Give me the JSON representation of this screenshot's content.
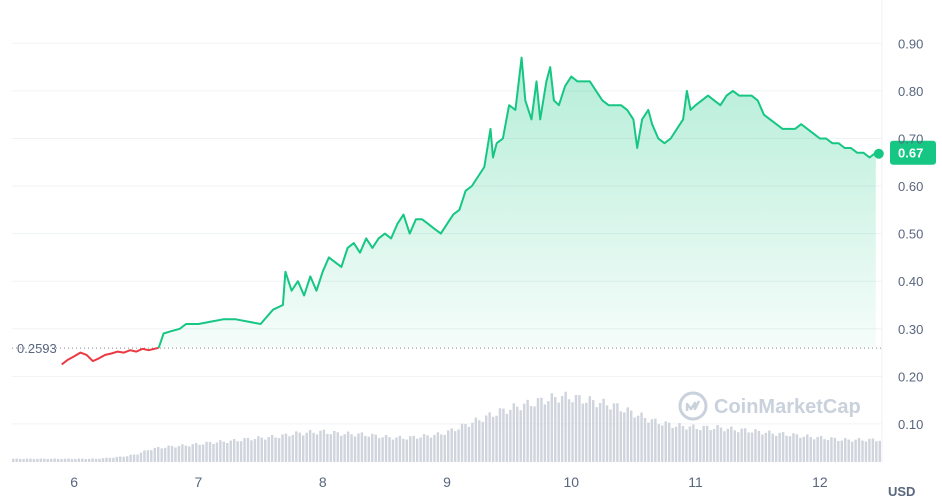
{
  "colors": {
    "up": "#16c784",
    "down": "#ea3943",
    "volume": "#d0d5dd",
    "grid": "#eff2f5",
    "badge": "#16c784"
  },
  "watermark": {
    "text": "CoinMarketCap",
    "icon": "coinmarketcap-logo-icon"
  },
  "current_price_label": "0.67",
  "reference_label": "0.2593",
  "unit_label": "USD",
  "chart_data": {
    "type": "area",
    "title": "",
    "xlabel": "",
    "ylabel": "",
    "currency": "USD",
    "x_ticks": [
      "6",
      "7",
      "8",
      "9",
      "10",
      "11",
      "12"
    ],
    "y_ticks": [
      "0.10",
      "0.20",
      "0.30",
      "0.40",
      "0.50",
      "0.60",
      "0.70",
      "0.80",
      "0.90"
    ],
    "ylim": [
      0.02,
      0.97
    ],
    "xlim": [
      5.5,
      12.5
    ],
    "reference_value": 0.2593,
    "last_value": 0.67,
    "series": [
      {
        "points": [
          [
            5.9,
            0.225
          ],
          [
            5.95,
            0.235
          ],
          [
            6.0,
            0.242
          ],
          [
            6.05,
            0.25
          ],
          [
            6.1,
            0.245
          ],
          [
            6.15,
            0.232
          ],
          [
            6.2,
            0.238
          ],
          [
            6.25,
            0.245
          ],
          [
            6.3,
            0.248
          ],
          [
            6.35,
            0.252
          ],
          [
            6.4,
            0.25
          ],
          [
            6.45,
            0.255
          ],
          [
            6.5,
            0.252
          ],
          [
            6.55,
            0.258
          ],
          [
            6.6,
            0.255
          ],
          [
            6.68,
            0.26
          ],
          [
            6.72,
            0.29
          ],
          [
            6.78,
            0.295
          ],
          [
            6.85,
            0.3
          ],
          [
            6.9,
            0.31
          ],
          [
            7.0,
            0.31
          ],
          [
            7.1,
            0.315
          ],
          [
            7.2,
            0.32
          ],
          [
            7.3,
            0.32
          ],
          [
            7.4,
            0.315
          ],
          [
            7.5,
            0.31
          ],
          [
            7.6,
            0.34
          ],
          [
            7.68,
            0.35
          ],
          [
            7.7,
            0.42
          ],
          [
            7.75,
            0.38
          ],
          [
            7.8,
            0.4
          ],
          [
            7.85,
            0.37
          ],
          [
            7.9,
            0.41
          ],
          [
            7.95,
            0.38
          ],
          [
            8.0,
            0.42
          ],
          [
            8.05,
            0.45
          ],
          [
            8.1,
            0.44
          ],
          [
            8.15,
            0.43
          ],
          [
            8.2,
            0.47
          ],
          [
            8.25,
            0.48
          ],
          [
            8.3,
            0.46
          ],
          [
            8.35,
            0.49
          ],
          [
            8.4,
            0.47
          ],
          [
            8.45,
            0.49
          ],
          [
            8.5,
            0.5
          ],
          [
            8.55,
            0.49
          ],
          [
            8.6,
            0.52
          ],
          [
            8.65,
            0.54
          ],
          [
            8.7,
            0.5
          ],
          [
            8.75,
            0.53
          ],
          [
            8.8,
            0.53
          ],
          [
            8.85,
            0.52
          ],
          [
            8.9,
            0.51
          ],
          [
            8.95,
            0.5
          ],
          [
            9.0,
            0.52
          ],
          [
            9.05,
            0.54
          ],
          [
            9.1,
            0.55
          ],
          [
            9.15,
            0.59
          ],
          [
            9.2,
            0.6
          ],
          [
            9.25,
            0.62
          ],
          [
            9.3,
            0.64
          ],
          [
            9.35,
            0.72
          ],
          [
            9.37,
            0.66
          ],
          [
            9.4,
            0.69
          ],
          [
            9.45,
            0.7
          ],
          [
            9.5,
            0.77
          ],
          [
            9.55,
            0.76
          ],
          [
            9.6,
            0.87
          ],
          [
            9.63,
            0.78
          ],
          [
            9.68,
            0.74
          ],
          [
            9.72,
            0.82
          ],
          [
            9.75,
            0.74
          ],
          [
            9.8,
            0.82
          ],
          [
            9.83,
            0.85
          ],
          [
            9.86,
            0.78
          ],
          [
            9.9,
            0.77
          ],
          [
            9.95,
            0.81
          ],
          [
            10.0,
            0.83
          ],
          [
            10.05,
            0.82
          ],
          [
            10.1,
            0.82
          ],
          [
            10.15,
            0.82
          ],
          [
            10.2,
            0.8
          ],
          [
            10.25,
            0.78
          ],
          [
            10.3,
            0.77
          ],
          [
            10.35,
            0.77
          ],
          [
            10.4,
            0.77
          ],
          [
            10.45,
            0.76
          ],
          [
            10.5,
            0.74
          ],
          [
            10.53,
            0.68
          ],
          [
            10.57,
            0.74
          ],
          [
            10.62,
            0.76
          ],
          [
            10.65,
            0.73
          ],
          [
            10.7,
            0.7
          ],
          [
            10.75,
            0.69
          ],
          [
            10.8,
            0.7
          ],
          [
            10.85,
            0.72
          ],
          [
            10.9,
            0.74
          ],
          [
            10.93,
            0.8
          ],
          [
            10.96,
            0.76
          ],
          [
            11.0,
            0.77
          ],
          [
            11.05,
            0.78
          ],
          [
            11.1,
            0.79
          ],
          [
            11.15,
            0.78
          ],
          [
            11.2,
            0.77
          ],
          [
            11.25,
            0.79
          ],
          [
            11.3,
            0.8
          ],
          [
            11.35,
            0.79
          ],
          [
            11.4,
            0.79
          ],
          [
            11.45,
            0.79
          ],
          [
            11.5,
            0.78
          ],
          [
            11.55,
            0.75
          ],
          [
            11.6,
            0.74
          ],
          [
            11.65,
            0.73
          ],
          [
            11.7,
            0.72
          ],
          [
            11.75,
            0.72
          ],
          [
            11.8,
            0.72
          ],
          [
            11.85,
            0.73
          ],
          [
            11.9,
            0.72
          ],
          [
            11.95,
            0.71
          ],
          [
            12.0,
            0.7
          ],
          [
            12.05,
            0.7
          ],
          [
            12.1,
            0.69
          ],
          [
            12.15,
            0.69
          ],
          [
            12.2,
            0.68
          ],
          [
            12.25,
            0.68
          ],
          [
            12.3,
            0.67
          ],
          [
            12.35,
            0.67
          ],
          [
            12.4,
            0.66
          ],
          [
            12.45,
            0.67
          ]
        ]
      }
    ],
    "volume": {
      "start_x": 5.5,
      "end_x": 12.5,
      "relative_levels": [
        0.08,
        0.08,
        0.08,
        0.08,
        0.08,
        0.08,
        0.08,
        0.08,
        0.08,
        0.1,
        0.12,
        0.15,
        0.2,
        0.3,
        0.35,
        0.38,
        0.4,
        0.42,
        0.45,
        0.48,
        0.5,
        0.52,
        0.55,
        0.58,
        0.6,
        0.62,
        0.65,
        0.7,
        0.72,
        0.74,
        0.75,
        0.72,
        0.7,
        0.69,
        0.68,
        0.65,
        0.62,
        0.6,
        0.6,
        0.62,
        0.65,
        0.68,
        0.75,
        0.85,
        0.95,
        1.05,
        1.15,
        1.25,
        1.32,
        1.4,
        1.45,
        1.52,
        1.58,
        1.62,
        1.6,
        1.55,
        1.5,
        1.45,
        1.4,
        1.3,
        1.2,
        1.1,
        1.0,
        0.95,
        0.9,
        0.88,
        0.85,
        0.85,
        0.85,
        0.82,
        0.8,
        0.78,
        0.75,
        0.72,
        0.7,
        0.68,
        0.65,
        0.62,
        0.6,
        0.58,
        0.55,
        0.55,
        0.55,
        0.55
      ]
    }
  }
}
